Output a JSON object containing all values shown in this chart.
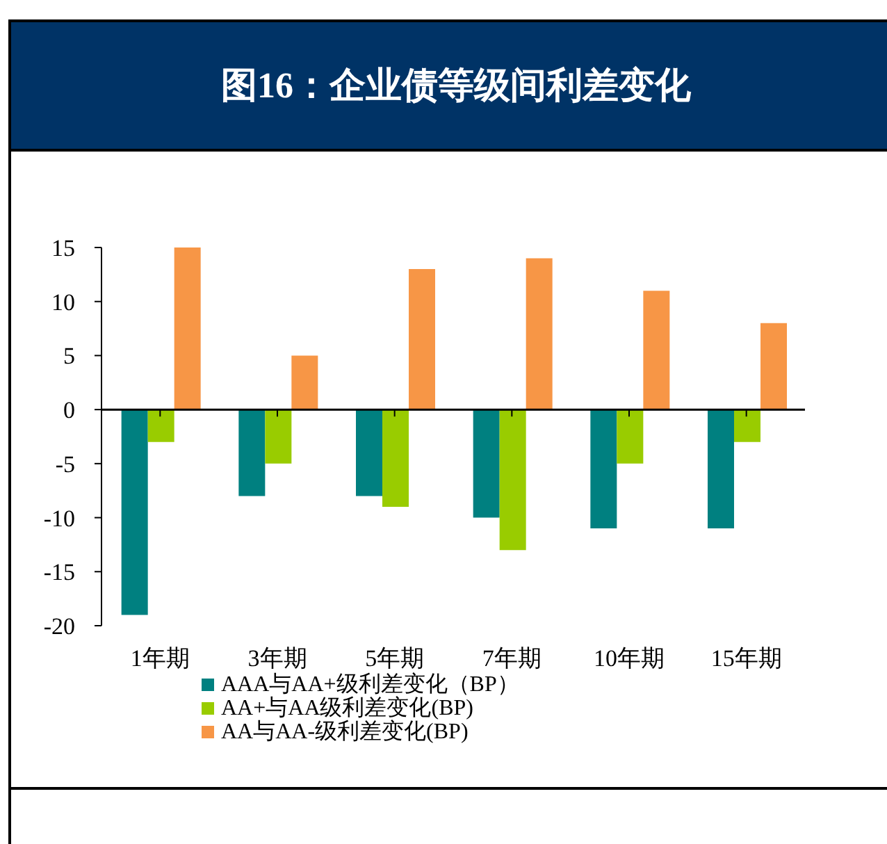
{
  "chart_data": {
    "type": "bar",
    "title": "图16：企业债等级间利差变化",
    "categories": [
      "1年期",
      "3年期",
      "5年期",
      "7年期",
      "10年期",
      "15年期"
    ],
    "series": [
      {
        "name": "AAA与AA+级利差变化（BP）",
        "color": "#008080",
        "values": [
          -19,
          -8,
          -8,
          -10,
          -11,
          -11
        ]
      },
      {
        "name": "AA+与AA级利差变化(BP)",
        "color": "#99cc00",
        "values": [
          -3,
          -5,
          -9,
          -13,
          -5,
          -3
        ]
      },
      {
        "name": "AA与AA-级利差变化(BP)",
        "color": "#f79646",
        "values": [
          15,
          5,
          13,
          14,
          11,
          8
        ]
      }
    ],
    "ylim": [
      -20,
      15
    ],
    "yticks": [
      -20,
      -15,
      -10,
      -5,
      0,
      5,
      10,
      15
    ],
    "legend": "bottom"
  }
}
